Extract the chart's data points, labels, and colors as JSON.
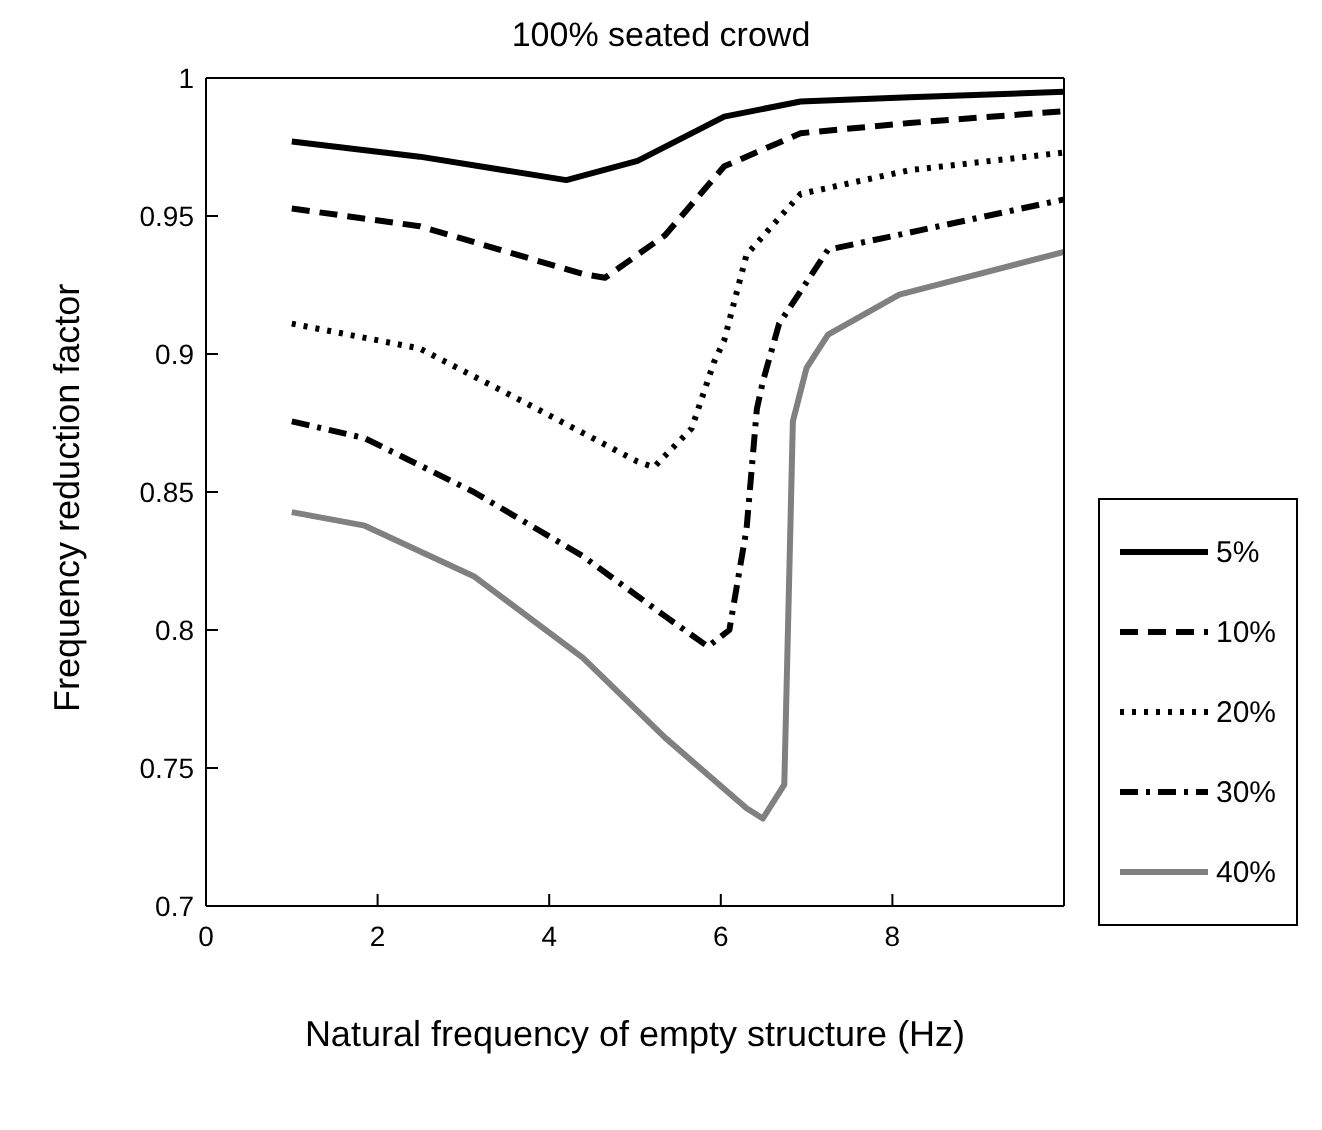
{
  "chart_data": {
    "type": "line",
    "title": "100% seated crowd",
    "xlabel": "Natural frequency of empty structure (Hz)",
    "ylabel": "Frequency reduction factor",
    "xlim": [
      0,
      10
    ],
    "xticks": [
      0,
      2,
      4,
      6,
      8,
      {
        "value": 10,
        "label": null
      }
    ],
    "ylim": [
      0.7,
      1
    ],
    "yticks": [
      0.7,
      0.75,
      0.8,
      0.85,
      0.9,
      0.95,
      1
    ],
    "grid": false,
    "legend": "bottom right",
    "marker": "none",
    "series": [
      {
        "name": "5%",
        "color": "#000000",
        "line_style": "solid",
        "x": [
          1,
          2.49,
          4.2,
          5.03,
          6.04,
          6.93,
          8.2,
          10
        ],
        "values": [
          0.977,
          0.9715,
          0.963,
          0.97,
          0.986,
          0.9915,
          0.993,
          0.995
        ]
      },
      {
        "name": "10%",
        "color": "#000000",
        "line_style": "dashed",
        "x": [
          1,
          2.49,
          4.39,
          4.65,
          5.35,
          6.04,
          6.93,
          8.2,
          10
        ],
        "values": [
          0.9527,
          0.9463,
          0.929,
          0.9276,
          0.943,
          0.968,
          0.98,
          0.9837,
          0.988
        ]
      },
      {
        "name": "20%",
        "color": "#000000",
        "line_style": "dotted",
        "x": [
          1,
          2.49,
          3.76,
          5.03,
          5.22,
          5.66,
          5.92,
          6.04,
          6.3,
          6.93,
          8.2,
          10
        ],
        "values": [
          0.911,
          0.902,
          0.8817,
          0.861,
          0.859,
          0.873,
          0.897,
          0.905,
          0.936,
          0.958,
          0.9666,
          0.973
        ]
      },
      {
        "name": "30%",
        "color": "#000000",
        "line_style": "dashdot",
        "x": [
          1,
          1.85,
          3.12,
          4.39,
          5.35,
          5.85,
          6.1,
          6.3,
          6.42,
          6.49,
          6.68,
          7.25,
          8.2,
          10
        ],
        "values": [
          0.8756,
          0.8695,
          0.85,
          0.8268,
          0.805,
          0.794,
          0.8,
          0.8366,
          0.88,
          0.89,
          0.911,
          0.9378,
          0.944,
          0.956
        ]
      },
      {
        "name": "40%",
        "color": "#808080",
        "line_style": "solid",
        "x": [
          1,
          1.85,
          3.12,
          4.39,
          5.35,
          6.3,
          6.49,
          6.74,
          6.84,
          7,
          7.25,
          8.08,
          10
        ],
        "values": [
          0.8427,
          0.8378,
          0.8195,
          0.79,
          0.761,
          0.7354,
          0.7317,
          0.744,
          0.8756,
          0.895,
          0.907,
          0.9215,
          0.937
        ]
      }
    ]
  }
}
